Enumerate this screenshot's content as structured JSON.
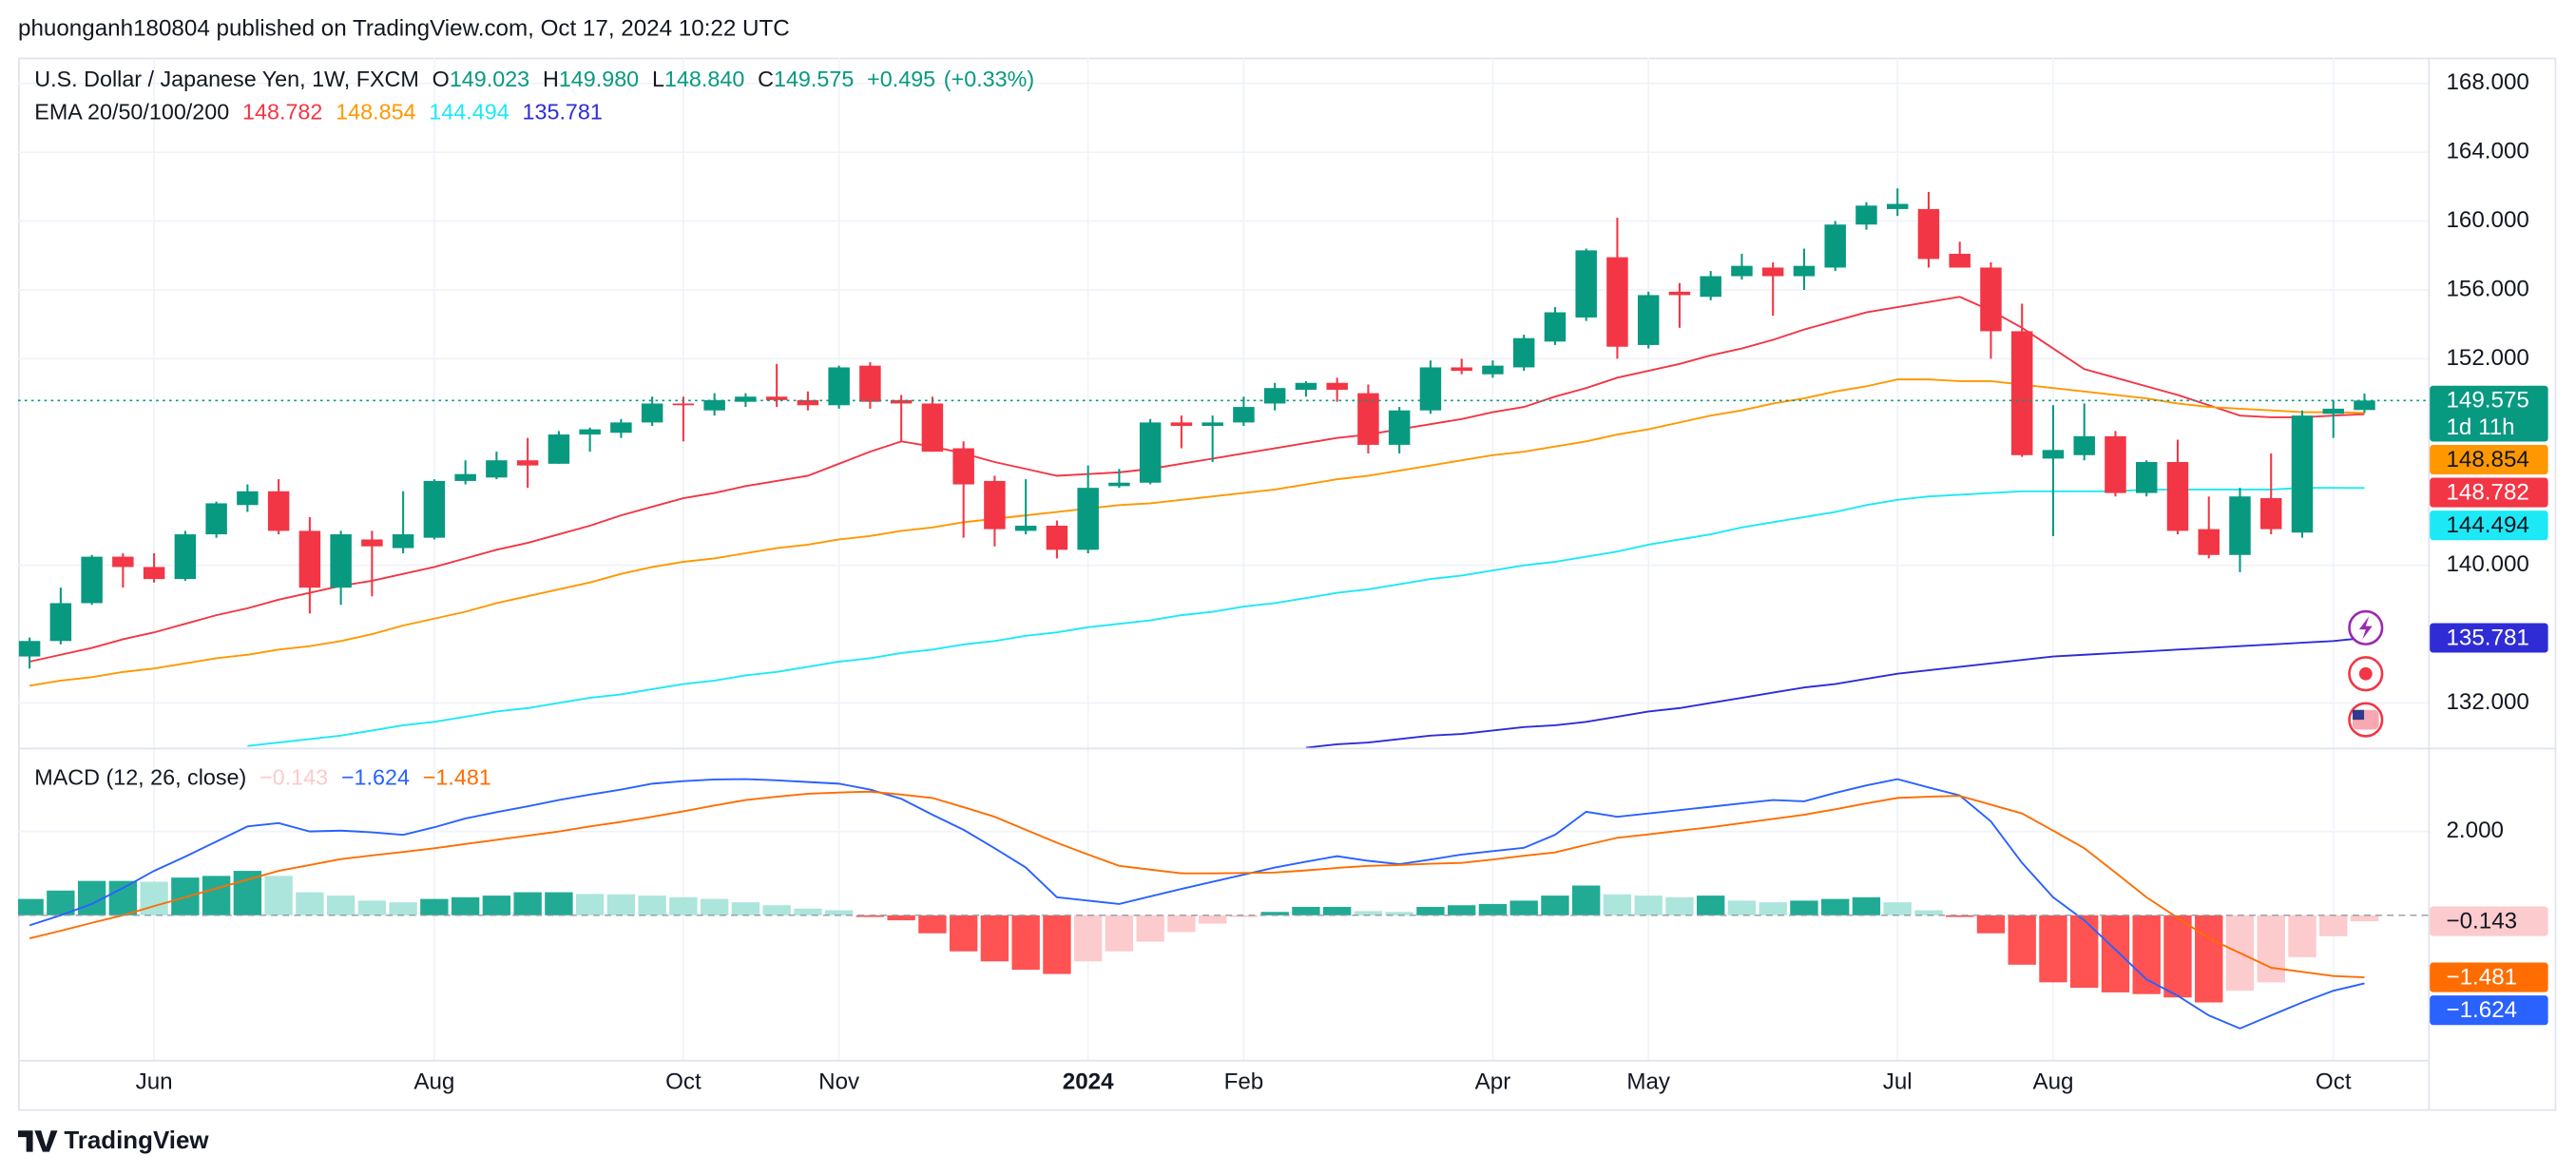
{
  "header": {
    "published": "phuonganh180804 published on TradingView.com, Oct 17, 2024 10:22 UTC",
    "logo": "TradingView"
  },
  "chart_data": [
    {
      "type": "candlestick",
      "title": "U.S. Dollar / Japanese Yen, 1W, FXCM",
      "ohlc_legend": {
        "labels": [
          "O",
          "H",
          "L",
          "C"
        ],
        "values": [
          {
            "value": 149.023,
            "label": "149.023"
          },
          {
            "value": 149.98,
            "label": "149.980"
          },
          {
            "value": 148.84,
            "label": "148.840"
          },
          {
            "value": 149.575,
            "label": "149.575"
          }
        ],
        "change": {
          "value": 0.495,
          "label": "+0.495"
        },
        "change_percent": {
          "value": 0.33,
          "label": "(+0.33%)"
        }
      },
      "categories": [
        null,
        null,
        null,
        null,
        "Jun",
        null,
        null,
        null,
        null,
        null,
        null,
        null,
        null,
        "Aug",
        null,
        null,
        null,
        null,
        null,
        null,
        null,
        "Oct",
        null,
        null,
        null,
        null,
        "Nov",
        null,
        null,
        null,
        null,
        null,
        null,
        null,
        "2024",
        null,
        null,
        null,
        null,
        "Feb",
        null,
        null,
        null,
        null,
        null,
        null,
        null,
        "Apr",
        null,
        null,
        null,
        null,
        "May",
        null,
        null,
        null,
        null,
        null,
        null,
        null,
        "Jul",
        null,
        null,
        null,
        null,
        "Aug",
        null,
        null,
        null,
        null,
        null,
        null,
        null,
        null,
        "Oct",
        null
      ],
      "open": [
        134.7,
        135.6,
        137.8,
        140.5,
        139.9,
        139.2,
        141.8,
        143.5,
        144.3,
        142.0,
        138.7,
        141.5,
        141.0,
        141.6,
        144.9,
        145.1,
        146.1,
        145.9,
        147.6,
        147.7,
        148.3,
        149.4,
        149.0,
        149.5,
        149.8,
        149.6,
        149.3,
        151.6,
        149.6,
        149.4,
        146.8,
        144.9,
        142.0,
        142.3,
        140.9,
        144.6,
        144.8,
        148.3,
        148.1,
        148.3,
        149.4,
        150.2,
        150.6,
        150.0,
        147.0,
        149.0,
        151.5,
        151.1,
        151.5,
        153.0,
        154.4,
        157.9,
        152.8,
        155.9,
        155.6,
        156.8,
        157.3,
        156.8,
        157.3,
        159.8,
        160.7,
        160.7,
        158.1,
        157.3,
        153.6,
        146.2,
        146.4,
        147.5,
        144.2,
        146.0,
        142.1,
        140.6,
        143.9,
        141.9,
        148.8,
        149.023
      ],
      "high": [
        135.8,
        138.7,
        140.6,
        140.7,
        140.7,
        142.0,
        143.7,
        144.7,
        145.0,
        142.8,
        142.0,
        142.0,
        144.3,
        145.0,
        146.1,
        146.6,
        147.4,
        147.8,
        148.0,
        148.5,
        149.8,
        149.8,
        150.0,
        150.0,
        151.7,
        150.1,
        151.6,
        151.8,
        149.9,
        149.8,
        147.2,
        145.2,
        145.0,
        142.6,
        145.8,
        145.6,
        148.5,
        148.7,
        148.7,
        149.8,
        150.6,
        150.7,
        150.9,
        150.5,
        149.2,
        151.9,
        152.0,
        151.9,
        153.4,
        155.0,
        158.4,
        160.2,
        155.9,
        156.4,
        157.1,
        158.1,
        157.6,
        158.4,
        160.0,
        161.1,
        161.9,
        161.7,
        158.8,
        157.6,
        155.2,
        149.3,
        149.4,
        147.8,
        146.1,
        147.3,
        144.0,
        144.5,
        146.5,
        149.0,
        149.6,
        149.98
      ],
      "low": [
        134.0,
        135.4,
        137.7,
        138.7,
        139.0,
        139.1,
        141.6,
        143.1,
        141.8,
        137.2,
        137.7,
        138.2,
        140.7,
        141.5,
        144.7,
        145.0,
        144.5,
        145.9,
        146.6,
        147.4,
        148.1,
        147.2,
        148.7,
        149.2,
        149.2,
        149.0,
        149.1,
        149.1,
        147.2,
        146.6,
        141.6,
        141.1,
        141.8,
        140.4,
        140.7,
        144.5,
        144.7,
        146.8,
        146.0,
        148.1,
        149.0,
        149.8,
        149.5,
        146.5,
        146.5,
        148.8,
        151.1,
        150.9,
        151.3,
        152.8,
        154.2,
        152.0,
        152.6,
        153.8,
        155.4,
        156.6,
        154.5,
        156.0,
        157.1,
        159.5,
        160.3,
        157.3,
        157.3,
        152.0,
        146.3,
        141.7,
        146.1,
        144.0,
        144.0,
        141.8,
        140.4,
        139.6,
        141.8,
        141.6,
        147.4,
        148.84
      ],
      "close": [
        135.6,
        137.8,
        140.5,
        139.9,
        139.2,
        141.8,
        143.6,
        144.3,
        142.0,
        138.7,
        141.8,
        141.1,
        141.8,
        144.9,
        145.3,
        146.1,
        145.8,
        147.6,
        147.9,
        148.3,
        149.4,
        149.3,
        149.6,
        149.8,
        149.6,
        149.3,
        151.5,
        149.5,
        149.4,
        146.6,
        144.7,
        142.1,
        142.3,
        140.9,
        144.5,
        144.8,
        148.3,
        148.1,
        148.3,
        149.2,
        150.3,
        150.6,
        150.2,
        147.0,
        149.0,
        151.5,
        151.3,
        151.6,
        153.2,
        154.7,
        158.3,
        152.7,
        155.7,
        155.7,
        156.8,
        157.4,
        156.8,
        157.4,
        159.8,
        160.9,
        161.0,
        157.8,
        157.3,
        153.6,
        146.4,
        146.7,
        147.5,
        144.2,
        146.0,
        142.0,
        140.6,
        144.0,
        142.1,
        148.7,
        149.1,
        149.575
      ],
      "up_color": "#089981",
      "down_color": "#f23645",
      "overlay_title": "EMA 20/50/100/200",
      "series": [
        {
          "color": "#f23645",
          "values": [
            134.4,
            134.8,
            135.2,
            135.7,
            136.1,
            136.6,
            137.1,
            137.5,
            138.0,
            138.4,
            138.8,
            139.1,
            139.5,
            139.9,
            140.4,
            140.9,
            141.3,
            141.8,
            142.3,
            142.9,
            143.4,
            143.9,
            144.2,
            144.6,
            144.9,
            145.2,
            145.9,
            146.6,
            147.2,
            146.9,
            146.5,
            146.0,
            145.6,
            145.2,
            145.3,
            145.4,
            145.6,
            145.9,
            146.2,
            146.5,
            146.8,
            147.1,
            147.4,
            147.6,
            147.9,
            148.2,
            148.5,
            148.9,
            149.2,
            149.8,
            150.3,
            150.9,
            151.3,
            151.7,
            152.2,
            152.6,
            153.1,
            153.7,
            154.2,
            154.7,
            155.0,
            155.3,
            155.6,
            154.8,
            153.8,
            152.6,
            151.4,
            150.9,
            150.4,
            149.9,
            149.3,
            148.7,
            148.6,
            148.6,
            148.7,
            148.782
          ]
        },
        {
          "color": "#ff9800",
          "values": [
            133.0,
            133.3,
            133.5,
            133.8,
            134.0,
            134.3,
            134.6,
            134.8,
            135.1,
            135.3,
            135.6,
            136.0,
            136.5,
            136.9,
            137.3,
            137.8,
            138.2,
            138.6,
            139.0,
            139.5,
            139.9,
            140.2,
            140.4,
            140.7,
            141.0,
            141.2,
            141.5,
            141.7,
            142.0,
            142.2,
            142.5,
            142.7,
            142.9,
            143.1,
            143.3,
            143.5,
            143.6,
            143.8,
            144.0,
            144.2,
            144.4,
            144.7,
            145.0,
            145.2,
            145.5,
            145.8,
            146.1,
            146.4,
            146.6,
            146.9,
            147.2,
            147.6,
            147.9,
            148.3,
            148.7,
            149.0,
            149.4,
            149.7,
            150.1,
            150.4,
            150.8,
            150.8,
            150.7,
            150.7,
            150.5,
            150.3,
            150.1,
            149.9,
            149.7,
            149.4,
            149.2,
            149.1,
            149.0,
            148.9,
            148.9,
            148.854
          ]
        },
        {
          "color": "#1de9f6",
          "values": [
            null,
            null,
            null,
            null,
            null,
            null,
            null,
            129.5,
            129.7,
            129.9,
            130.1,
            130.4,
            130.7,
            130.9,
            131.2,
            131.5,
            131.7,
            132.0,
            132.3,
            132.5,
            132.8,
            133.1,
            133.3,
            133.6,
            133.8,
            134.1,
            134.4,
            134.6,
            134.9,
            135.1,
            135.4,
            135.6,
            135.9,
            136.1,
            136.4,
            136.6,
            136.8,
            137.1,
            137.3,
            137.6,
            137.8,
            138.1,
            138.4,
            138.6,
            138.9,
            139.2,
            139.4,
            139.7,
            140.0,
            140.2,
            140.5,
            140.8,
            141.2,
            141.5,
            141.8,
            142.2,
            142.5,
            142.8,
            143.1,
            143.5,
            143.8,
            144.0,
            144.1,
            144.2,
            144.3,
            144.3,
            144.3,
            144.3,
            144.4,
            144.4,
            144.4,
            144.4,
            144.4,
            144.5,
            144.5,
            144.494
          ]
        },
        {
          "color": "#2f2cd6",
          "values": [
            null,
            null,
            null,
            null,
            null,
            null,
            null,
            null,
            null,
            null,
            null,
            null,
            null,
            null,
            null,
            null,
            null,
            null,
            null,
            null,
            null,
            null,
            null,
            null,
            null,
            null,
            null,
            null,
            null,
            null,
            null,
            null,
            null,
            null,
            null,
            null,
            null,
            null,
            null,
            null,
            null,
            129.4,
            129.6,
            129.7,
            129.9,
            130.1,
            130.2,
            130.4,
            130.6,
            130.7,
            130.9,
            131.2,
            131.5,
            131.7,
            132.0,
            132.3,
            132.6,
            132.9,
            133.1,
            133.4,
            133.7,
            133.9,
            134.1,
            134.3,
            134.5,
            134.7,
            134.8,
            134.9,
            135.0,
            135.1,
            135.2,
            135.3,
            135.4,
            135.5,
            135.6,
            135.781
          ]
        }
      ],
      "countdown": "1d 11h",
      "ylim": [
        129.4,
        169.5
      ],
      "yticks": [
        {
          "value": 132,
          "label": "132.000"
        },
        {
          "value": 140,
          "label": "140.000"
        },
        {
          "value": 152,
          "label": "152.000"
        },
        {
          "value": 156,
          "label": "156.000"
        },
        {
          "value": 160,
          "label": "160.000"
        },
        {
          "value": 164,
          "label": "164.000"
        },
        {
          "value": 168,
          "label": "168.000"
        }
      ],
      "grid": true
    },
    {
      "type": "macd",
      "title": "MACD (12, 26, close)",
      "histogram": {
        "values": [
          0.39,
          0.59,
          0.82,
          0.82,
          0.8,
          0.9,
          0.94,
          1.06,
          0.94,
          0.55,
          0.47,
          0.35,
          0.31,
          0.39,
          0.43,
          0.47,
          0.55,
          0.55,
          0.51,
          0.5,
          0.47,
          0.43,
          0.39,
          0.31,
          0.24,
          0.16,
          0.12,
          -0.04,
          -0.12,
          -0.43,
          -0.86,
          -1.1,
          -1.3,
          -1.4,
          -1.1,
          -0.86,
          -0.63,
          -0.4,
          -0.2,
          -0.04,
          0.08,
          0.2,
          0.2,
          0.1,
          0.08,
          0.2,
          0.24,
          0.27,
          0.35,
          0.47,
          0.71,
          0.5,
          0.47,
          0.43,
          0.47,
          0.35,
          0.31,
          0.35,
          0.39,
          0.43,
          0.31,
          0.12,
          -0.04,
          -0.43,
          -1.18,
          -1.6,
          -1.73,
          -1.84,
          -1.88,
          -1.96,
          -2.08,
          -1.8,
          -1.6,
          -1.0,
          -0.5,
          -0.143
        ],
        "colors": {
          "rising_above": "#22ab94",
          "falling_above": "#ace5dc",
          "falling_below": "#ff5252",
          "rising_below": "#fccbcd"
        }
      },
      "series": [
        {
          "color": "#2962ff",
          "values": [
            -0.24,
            0.0,
            0.27,
            0.65,
            1.06,
            1.4,
            1.76,
            2.12,
            2.2,
            2.0,
            2.02,
            1.98,
            1.92,
            2.1,
            2.31,
            2.46,
            2.6,
            2.75,
            2.88,
            3.0,
            3.14,
            3.2,
            3.24,
            3.25,
            3.22,
            3.18,
            3.14,
            3.0,
            2.78,
            2.4,
            2.04,
            1.6,
            1.14,
            0.43,
            0.35,
            0.27,
            0.45,
            0.63,
            0.8,
            0.97,
            1.14,
            1.28,
            1.41,
            1.3,
            1.22,
            1.33,
            1.45,
            1.53,
            1.61,
            1.92,
            2.47,
            2.35,
            2.43,
            2.51,
            2.59,
            2.67,
            2.75,
            2.72,
            2.92,
            3.1,
            3.25,
            3.05,
            2.86,
            2.24,
            1.25,
            0.43,
            -0.12,
            -0.82,
            -1.53,
            -1.92,
            -2.39,
            -2.7,
            -2.39,
            -2.08,
            -1.8,
            -1.624
          ]
        },
        {
          "color": "#ff6d00",
          "values": [
            -0.55,
            -0.37,
            -0.18,
            0.0,
            0.22,
            0.43,
            0.64,
            0.85,
            1.06,
            1.2,
            1.34,
            1.43,
            1.51,
            1.6,
            1.7,
            1.8,
            1.9,
            2.0,
            2.12,
            2.23,
            2.35,
            2.48,
            2.62,
            2.75,
            2.83,
            2.9,
            2.93,
            2.95,
            2.88,
            2.8,
            2.58,
            2.35,
            2.04,
            1.73,
            1.45,
            1.18,
            1.09,
            1.0,
            1.0,
            1.01,
            1.02,
            1.07,
            1.13,
            1.18,
            1.2,
            1.23,
            1.25,
            1.33,
            1.42,
            1.5,
            1.68,
            1.85,
            1.93,
            2.02,
            2.1,
            2.2,
            2.3,
            2.4,
            2.53,
            2.67,
            2.8,
            2.83,
            2.85,
            2.64,
            2.43,
            2.02,
            1.6,
            1.02,
            0.43,
            -0.06,
            -0.55,
            -0.9,
            -1.25,
            -1.35,
            -1.45,
            -1.481
          ]
        }
      ],
      "last_values": [
        {
          "value": -0.143,
          "label": "−0.143"
        },
        {
          "value": -1.624,
          "label": "−1.624"
        },
        {
          "value": -1.481,
          "label": "−1.481"
        }
      ],
      "ylim": [
        -3.45,
        3.96
      ],
      "yticks": [
        {
          "value": 2,
          "label": "2.000"
        }
      ],
      "grid": true
    }
  ]
}
